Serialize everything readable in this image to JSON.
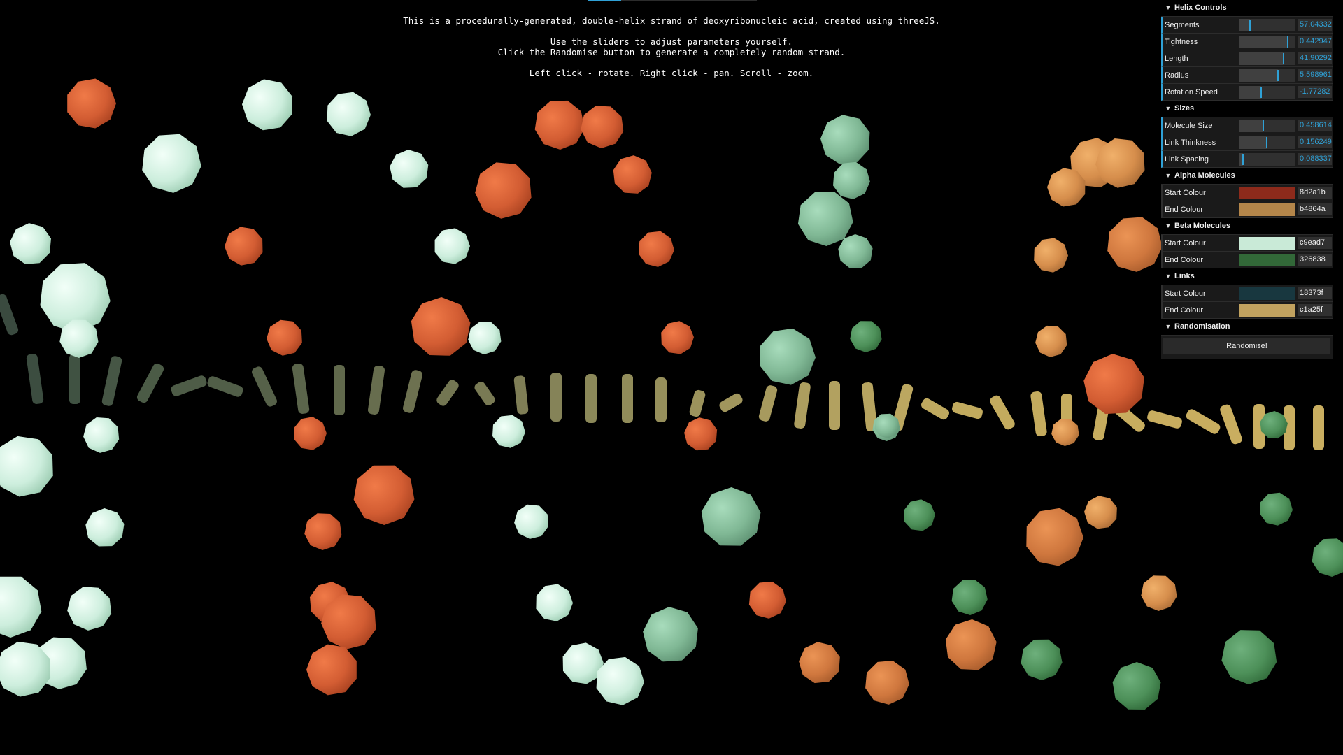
{
  "info": {
    "line1": "This is a procedurally-generated, double-helix strand of deoxyribonucleic acid, created using threeJS.",
    "line2": "Use the sliders to adjust parameters yourself.",
    "line3": "Click the Randomise button to generate a completely random strand.",
    "line4": "Left click - rotate. Right click - pan. Scroll - zoom."
  },
  "gui": {
    "helix": {
      "title": "Helix Controls",
      "segments": {
        "label": "Segments",
        "value": "57.04332",
        "fraction": 0.2
      },
      "tightness": {
        "label": "Tightness",
        "value": "0.442947",
        "fraction": 0.88
      },
      "length": {
        "label": "Length",
        "value": "41.90292",
        "fraction": 0.8
      },
      "radius": {
        "label": "Radius",
        "value": "5.598961",
        "fraction": 0.7
      },
      "rotation": {
        "label": "Rotation Speed",
        "value": "-1.77282",
        "fraction": 0.4
      }
    },
    "sizes": {
      "title": "Sizes",
      "molecule": {
        "label": "Molecule Size",
        "value": "0.458614",
        "fraction": 0.44
      },
      "link_thickness": {
        "label": "Link Thinkness",
        "value": "0.156249",
        "fraction": 0.5
      },
      "link_spacing": {
        "label": "Link Spacing",
        "value": "0.088337",
        "fraction": 0.07
      }
    },
    "alpha": {
      "title": "Alpha Molecules",
      "start": {
        "label": "Start Colour",
        "hex": "8d2a1b",
        "color": "#8d2a1b"
      },
      "end": {
        "label": "End Colour",
        "hex": "b4864a",
        "color": "#b4864a"
      }
    },
    "beta": {
      "title": "Beta Molecules",
      "start": {
        "label": "Start Colour",
        "hex": "c9ead7",
        "color": "#c9ead7"
      },
      "end": {
        "label": "End Colour",
        "hex": "326838",
        "color": "#326838"
      }
    },
    "links": {
      "title": "Links",
      "start": {
        "label": "Start Colour",
        "hex": "18373f",
        "color": "#18373f"
      },
      "end": {
        "label": "End Colour",
        "hex": "c1a25f",
        "color": "#c1a25f"
      }
    },
    "randomisation": {
      "title": "Randomisation",
      "button": "Randomise!"
    }
  },
  "icons": {
    "chevron": "chevron-down-icon"
  }
}
